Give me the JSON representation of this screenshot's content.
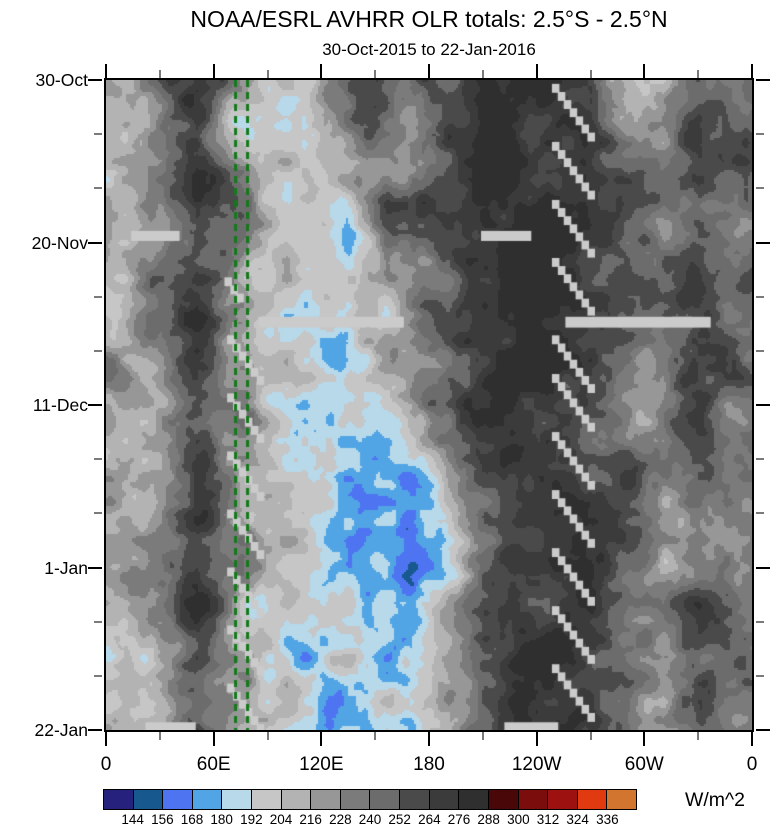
{
  "header": {
    "title": "NOAA/ESRL AVHRR OLR totals: 2.5°S - 2.5°N",
    "subtitle": "30-Oct-2015 to 22-Jan-2016"
  },
  "colorbar": {
    "units": "W/m^2",
    "tick_labels": [
      "144",
      "156",
      "168",
      "180",
      "192",
      "204",
      "216",
      "228",
      "240",
      "252",
      "264",
      "276",
      "288",
      "300",
      "312",
      "324",
      "336"
    ],
    "colors": [
      "#25217d",
      "#17598f",
      "#4e74f1",
      "#52a5e5",
      "#b7d9ea",
      "#c6c6c6",
      "#b3b3b3",
      "#979797",
      "#7b7b7b",
      "#6c6c6c",
      "#4a4a4a",
      "#3b3b3b",
      "#2f2f2f",
      "#4a0707",
      "#7c0d0d",
      "#9e1111",
      "#e13a10",
      "#d2752e"
    ]
  },
  "chart_data": {
    "type": "heatmap",
    "title": "NOAA/ESRL AVHRR OLR totals: 2.5°S - 2.5°N",
    "subtitle": "30-Oct-2015 to 22-Jan-2016",
    "units": "W/m^2",
    "x": {
      "range_deg": [
        0,
        360
      ],
      "major_ticks": [
        {
          "label": "0",
          "deg": 0
        },
        {
          "label": "60E",
          "deg": 60
        },
        {
          "label": "120E",
          "deg": 120
        },
        {
          "label": "180",
          "deg": 180
        },
        {
          "label": "120W",
          "deg": 240
        },
        {
          "label": "60W",
          "deg": 300
        },
        {
          "label": "0",
          "deg": 360
        }
      ],
      "minor_ticks_deg": [
        30,
        90,
        150,
        210,
        270,
        330
      ]
    },
    "y": {
      "range_days": [
        0,
        84
      ],
      "major_ticks": [
        {
          "label": "30-Oct",
          "day": 0
        },
        {
          "label": "20-Nov",
          "day": 21
        },
        {
          "label": "11-Dec",
          "day": 42
        },
        {
          "label": "1-Jan",
          "day": 63
        },
        {
          "label": "22-Jan",
          "day": 84
        }
      ],
      "minor_ticks_day": [
        7,
        14,
        28,
        35,
        49,
        56,
        70,
        77
      ]
    },
    "levels": [
      144,
      156,
      168,
      180,
      192,
      204,
      216,
      228,
      240,
      252,
      264,
      276,
      288,
      300,
      312,
      324,
      336
    ],
    "grid_lon_centers": [
      10,
      30,
      50,
      70,
      90,
      110,
      130,
      150,
      170,
      190,
      210,
      230,
      250,
      270,
      290,
      310,
      330,
      350
    ],
    "grid_day_centers": [
      0,
      5.25,
      10.5,
      15.75,
      21,
      26.25,
      31.5,
      36.75,
      42,
      47.25,
      52.5,
      57.75,
      63,
      68.25,
      73.5,
      78.75,
      84
    ],
    "grid_values_wm2": [
      [
        212,
        238,
        272,
        248,
        205,
        192,
        222,
        266,
        272,
        240,
        276,
        282,
        278,
        268,
        204,
        218,
        262,
        242
      ],
      [
        208,
        242,
        270,
        196,
        204,
        186,
        214,
        254,
        206,
        250,
        272,
        286,
        280,
        264,
        212,
        224,
        266,
        246
      ],
      [
        220,
        236,
        268,
        228,
        196,
        190,
        200,
        216,
        240,
        262,
        278,
        284,
        276,
        262,
        238,
        228,
        260,
        250
      ],
      [
        216,
        232,
        266,
        240,
        188,
        182,
        204,
        248,
        266,
        258,
        274,
        282,
        278,
        266,
        248,
        230,
        256,
        244
      ],
      [
        210,
        228,
        264,
        236,
        202,
        196,
        190,
        210,
        236,
        254,
        276,
        280,
        274,
        260,
        242,
        226,
        252,
        240
      ],
      [
        218,
        234,
        262,
        230,
        208,
        190,
        178,
        198,
        230,
        248,
        272,
        278,
        276,
        262,
        246,
        232,
        258,
        246
      ],
      [
        214,
        230,
        266,
        226,
        196,
        184,
        172,
        206,
        238,
        252,
        274,
        282,
        278,
        264,
        244,
        228,
        254,
        242
      ],
      [
        220,
        236,
        264,
        232,
        204,
        192,
        186,
        202,
        224,
        244,
        270,
        280,
        276,
        262,
        248,
        234,
        260,
        248
      ],
      [
        216,
        232,
        262,
        238,
        198,
        188,
        180,
        194,
        216,
        236,
        268,
        278,
        274,
        258,
        244,
        230,
        256,
        244
      ],
      [
        212,
        228,
        260,
        234,
        206,
        196,
        188,
        184,
        204,
        228,
        264,
        276,
        272,
        260,
        246,
        226,
        252,
        240
      ],
      [
        218,
        234,
        264,
        228,
        210,
        202,
        190,
        176,
        168,
        212,
        258,
        274,
        270,
        262,
        248,
        232,
        258,
        246
      ],
      [
        214,
        230,
        262,
        236,
        204,
        198,
        186,
        172,
        156,
        196,
        252,
        272,
        268,
        258,
        244,
        228,
        254,
        242
      ],
      [
        210,
        226,
        266,
        230,
        208,
        192,
        180,
        168,
        152,
        188,
        246,
        270,
        272,
        260,
        242,
        224,
        250,
        238
      ],
      [
        216,
        232,
        264,
        226,
        200,
        186,
        176,
        182,
        172,
        204,
        252,
        274,
        270,
        256,
        246,
        230,
        256,
        244
      ],
      [
        212,
        228,
        262,
        222,
        196,
        180,
        184,
        190,
        186,
        216,
        258,
        276,
        272,
        258,
        242,
        226,
        252,
        240
      ],
      [
        218,
        234,
        266,
        228,
        202,
        188,
        178,
        186,
        194,
        224,
        262,
        278,
        274,
        260,
        244,
        230,
        258,
        246
      ],
      [
        214,
        230,
        264,
        232,
        198,
        184,
        186,
        192,
        188,
        218,
        260,
        276,
        272,
        262,
        246,
        228,
        254,
        242
      ]
    ],
    "reference_lines": {
      "color": "#117a18",
      "dash": [
        7,
        5
      ],
      "width": 3,
      "positions_deg": [
        72.2,
        78.9
      ]
    },
    "missing_data": {
      "color": "#cbcbcb",
      "bars": [
        {
          "lon0": 14,
          "lon1": 41,
          "day0": 19.5,
          "day1": 20.8
        },
        {
          "lon0": 209,
          "lon1": 237,
          "day0": 19.5,
          "day1": 20.8
        },
        {
          "lon0": 85,
          "lon1": 166,
          "day0": 30.6,
          "day1": 32.0
        },
        {
          "lon0": 256,
          "lon1": 337,
          "day0": 30.6,
          "day1": 32.0
        },
        {
          "lon0": 22,
          "lon1": 50,
          "day0": 83.0,
          "day1": 84.0
        },
        {
          "lon0": 222,
          "lon1": 252,
          "day0": 83.0,
          "day1": 84.0
        }
      ],
      "stripe_step": {
        "dlon": 3.3,
        "dday": 1.05,
        "w": 4.2,
        "h": 1.15
      },
      "stripes": [
        {
          "lon0": 248.5,
          "day0": 0.5,
          "n": 7
        },
        {
          "lon0": 248.5,
          "day0": 8,
          "n": 7
        },
        {
          "lon0": 248.5,
          "day0": 15.5,
          "n": 7
        },
        {
          "lon0": 248.5,
          "day0": 23,
          "n": 7
        },
        {
          "lon0": 248.5,
          "day0": 33,
          "n": 7
        },
        {
          "lon0": 248.5,
          "day0": 38,
          "n": 7
        },
        {
          "lon0": 248.5,
          "day0": 45.5,
          "n": 7
        },
        {
          "lon0": 248.5,
          "day0": 53,
          "n": 7
        },
        {
          "lon0": 248.5,
          "day0": 60.5,
          "n": 7
        },
        {
          "lon0": 248.5,
          "day0": 68,
          "n": 7
        },
        {
          "lon0": 248.5,
          "day0": 75.5,
          "n": 7
        },
        {
          "lon0": 66,
          "day0": 25.5,
          "n": 3
        },
        {
          "lon0": 67.5,
          "day0": 33,
          "n": 6
        },
        {
          "lon0": 67.5,
          "day0": 40.5,
          "n": 6
        },
        {
          "lon0": 67.5,
          "day0": 48,
          "n": 6
        },
        {
          "lon0": 67.5,
          "day0": 55.5,
          "n": 6
        },
        {
          "lon0": 67.5,
          "day0": 63,
          "n": 6
        },
        {
          "lon0": 67.5,
          "day0": 70.5,
          "n": 6
        },
        {
          "lon0": 67.5,
          "day0": 78,
          "n": 6
        }
      ]
    }
  }
}
